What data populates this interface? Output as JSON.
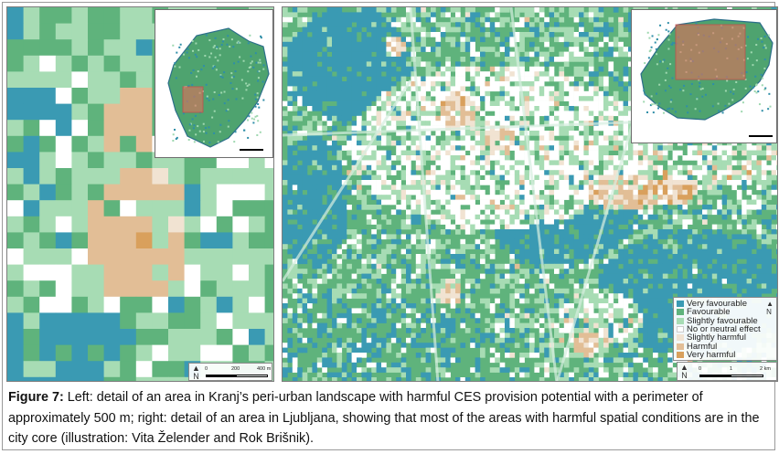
{
  "legend": {
    "items": [
      {
        "label": "Very favourable",
        "color": "#3a9ab3"
      },
      {
        "label": "Favourable",
        "color": "#5fb37c"
      },
      {
        "label": "Slightly favourable",
        "color": "#a7dcb4"
      },
      {
        "label": "No or neutral effect",
        "color": "#ffffff"
      },
      {
        "label": "Slightly harmful",
        "color": "#f1e3d2"
      },
      {
        "label": "Harmful",
        "color": "#e2be96"
      },
      {
        "label": "Very harmful",
        "color": "#d9a05c"
      }
    ]
  },
  "left_map": {
    "north_label": "N",
    "scale_ticks": [
      "0",
      "200",
      "400 m"
    ]
  },
  "right_map": {
    "north_label": "N",
    "scale_ticks": [
      "0",
      "1",
      "2 km"
    ]
  },
  "caption": {
    "label": "Figure 7:",
    "text": " Left: detail of an area in Kranj’s peri-urban landscape with harmful CES provision potential with a perimeter of approximately 500 m; right: detail of an area in Ljubljana, showing that most of the areas with harmful spatial conditions are in the city core (illustration: Vita Želender and Rok Brišnik)."
  }
}
